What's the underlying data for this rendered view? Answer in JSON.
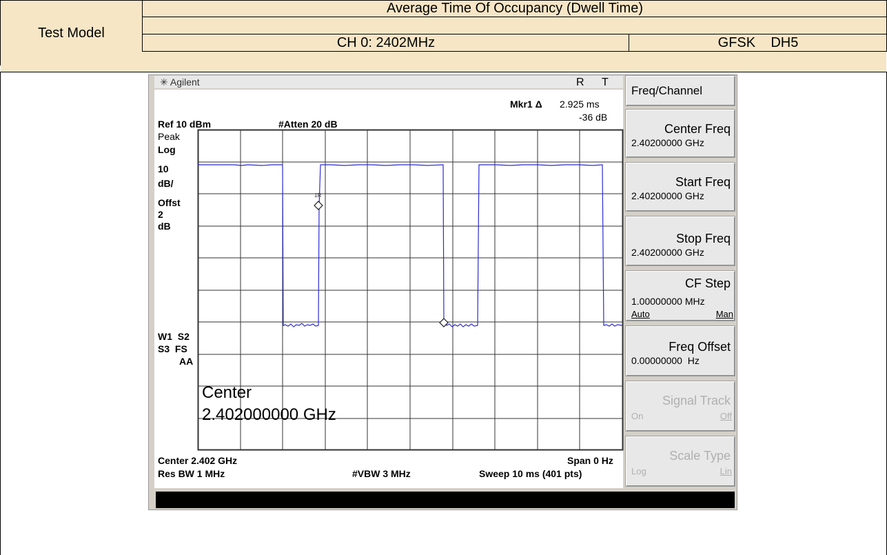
{
  "header": {
    "test_model": "Test Model",
    "title": "Average Time Of Occupancy (Dwell Time)",
    "channel": "CH 0: 2402MHz",
    "mode": "GFSK    DH5"
  },
  "analyzer": {
    "brand": "Agilent",
    "status": [
      "R",
      "T"
    ],
    "marker_label": "Mkr1 Δ",
    "marker_time": "2.925 ms",
    "marker_level": "-36 dB",
    "ref": "Ref 10 dBm",
    "atten": "#Atten 20 dB",
    "left_labels": [
      "Peak",
      "Log",
      "10",
      "dB/",
      "Offst",
      "2",
      "dB"
    ],
    "left_labels2": [
      "W1  S2",
      "S3  FS",
      "AA"
    ],
    "marker_id": "1R",
    "center_title": "Center",
    "center_freq": "2.402000000 GHz",
    "footer": [
      "Center 2.402 GHz",
      "Span 0 Hz",
      "Res BW 1 MHz",
      "#VBW 3 MHz",
      "Sweep 10 ms (401 pts)"
    ]
  },
  "softkeys": {
    "menu": "Freq/Channel",
    "keys": [
      {
        "label": "Center Freq",
        "value": "2.40200000 GHz"
      },
      {
        "label": "Start Freq",
        "value": "2.40200000 GHz"
      },
      {
        "label": "Stop Freq",
        "value": "2.40200000 GHz"
      },
      {
        "label": "CF Step",
        "value": "1.00000000 MHz",
        "options": [
          "Auto",
          "Man"
        ]
      },
      {
        "label": "Freq Offset",
        "value": "0.00000000  Hz"
      },
      {
        "label": "Signal Track",
        "options": [
          "On",
          "Off"
        ]
      },
      {
        "label": "Scale Type",
        "options": [
          "Log",
          "Lin"
        ]
      }
    ]
  }
}
